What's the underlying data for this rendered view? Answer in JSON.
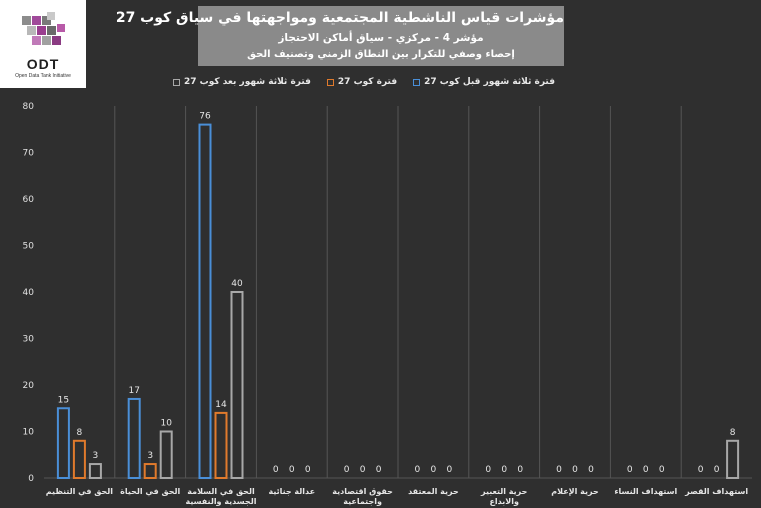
{
  "logo": {
    "text": "ODT",
    "subtext": "Open Data Tank Initiative"
  },
  "header": {
    "title": "مؤشرات قياس الناشطية المجتمعية ومواجهتها في سياق كوب 27",
    "subtitle1": "مؤشر 4 - مركزي - سياق أماكن الاحتجاز",
    "subtitle2": "إحصاء وصفي للتكرار بين النطاق الزمني وتصنيف الحق"
  },
  "colors": {
    "before": "#4a8fd8",
    "during": "#e07a2c",
    "after": "#a8a8a8",
    "background": "#2f2f2f",
    "grid": "#555555"
  },
  "chart_data": {
    "type": "bar",
    "categories": [
      "الحق في التنظيم",
      "الحق في الحياة",
      "الحق في السلامة الجسدية والنفسية",
      "عدالة جنائية",
      "حقوق اقتصادية واجتماعية",
      "حرية المعتقد",
      "حرية التعبير والابداع",
      "حرية الإعلام",
      "استهداف النساء",
      "استهداف القصر"
    ],
    "category_lines": [
      [
        "الحق في التنظيم"
      ],
      [
        "الحق في الحياة"
      ],
      [
        "الحق في السلامة",
        "الجسدية والنفسية"
      ],
      [
        "عدالة جنائية"
      ],
      [
        "حقوق اقتصادية",
        "واجتماعية"
      ],
      [
        "حرية المعتقد"
      ],
      [
        "حرية التعبير",
        "والابداع"
      ],
      [
        "حرية الإعلام"
      ],
      [
        "استهداف النساء"
      ],
      [
        "استهداف القصر"
      ]
    ],
    "series": [
      {
        "name": "فترة ثلاثة شهور قبل كوب 27",
        "key": "before",
        "values": [
          15,
          17,
          76,
          0,
          0,
          0,
          0,
          0,
          0,
          0
        ]
      },
      {
        "name": "فترة كوب 27",
        "key": "during",
        "values": [
          8,
          3,
          14,
          0,
          0,
          0,
          0,
          0,
          0,
          0
        ]
      },
      {
        "name": "فترة ثلاثة شهور بعد كوب 27",
        "key": "after",
        "values": [
          3,
          10,
          40,
          0,
          0,
          0,
          0,
          0,
          0,
          8
        ]
      }
    ],
    "ylim": [
      0,
      80
    ],
    "yticks": [
      0,
      10,
      20,
      30,
      40,
      50,
      60,
      70,
      80
    ],
    "grid": true,
    "legend": "top"
  }
}
